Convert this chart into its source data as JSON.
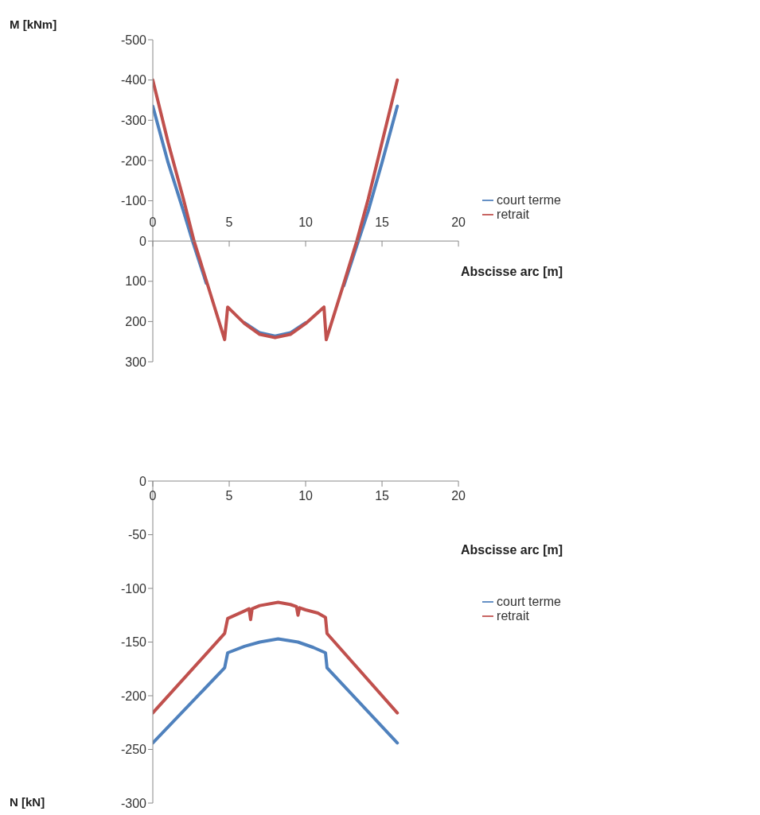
{
  "chart_data": [
    {
      "type": "line",
      "xlabel": "Abscisse arc [m]",
      "ylabel": "M [kNm]",
      "xlim": [
        0,
        20
      ],
      "xticks": [
        0,
        5,
        10,
        15,
        20
      ],
      "ylim": [
        300,
        -500
      ],
      "yticks": [
        -500,
        -400,
        -300,
        -200,
        -100,
        0,
        100,
        200,
        300
      ],
      "grid": false,
      "legend": "right",
      "marker": "none",
      "line_style": "solid",
      "series": [
        {
          "name": "court terme",
          "color": "#4f81bd",
          "x": [
            0,
            1,
            2,
            2.6,
            3.5,
            4.7,
            4.9,
            6,
            7,
            8,
            9,
            10,
            11.2,
            11.35,
            12.5,
            13.45,
            14.1,
            15,
            16
          ],
          "values": [
            -335,
            -195,
            -75,
            0,
            105,
            null,
            null,
            203,
            228,
            236,
            228,
            203,
            null,
            null,
            111,
            0,
            -75,
            -195,
            -335
          ]
        },
        {
          "name": "retrait",
          "color": "#c0504d",
          "x": [
            0,
            1,
            2,
            2.7,
            3.5,
            4.7,
            4.9,
            6,
            7,
            8,
            9,
            10,
            11.2,
            11.35,
            12.5,
            13.35,
            14.1,
            15,
            16
          ],
          "values": [
            -400,
            -245,
            -105,
            0,
            98,
            245,
            164,
            205,
            232,
            240,
            232,
            205,
            164,
            245,
            105,
            0,
            -105,
            -245,
            -400
          ]
        }
      ]
    },
    {
      "type": "line",
      "xlabel": "Abscisse arc [m]",
      "ylabel": "N [kN]",
      "xlim": [
        0,
        20
      ],
      "xticks": [
        0,
        5,
        10,
        15,
        20
      ],
      "ylim": [
        -300,
        0
      ],
      "yticks": [
        -300,
        -250,
        -200,
        -150,
        -100,
        -50,
        0
      ],
      "grid": false,
      "legend": "right",
      "marker": "none",
      "line_style": "solid",
      "series": [
        {
          "name": "court terme",
          "color": "#4f81bd",
          "x": [
            0,
            4.7,
            4.9,
            6,
            7,
            8.2,
            9.5,
            10.5,
            11.3,
            11.4,
            16
          ],
          "values": [
            -244,
            -174,
            -160,
            -154,
            -150,
            -147,
            -150,
            -155,
            -160,
            -174,
            -244
          ]
        },
        {
          "name": "retrait",
          "color": "#c0504d",
          "x": [
            0,
            4.7,
            4.9,
            6,
            6.3,
            6.4,
            6.5,
            7,
            8.2,
            9,
            9.4,
            9.5,
            9.6,
            10,
            10.8,
            11.3,
            11.4,
            16
          ],
          "values": [
            -216,
            -142,
            -128,
            -121,
            -119,
            -129,
            -119,
            -116,
            -113,
            -115,
            -117,
            -125,
            -118,
            -120,
            -123,
            -127,
            -142,
            -216
          ]
        }
      ]
    }
  ]
}
